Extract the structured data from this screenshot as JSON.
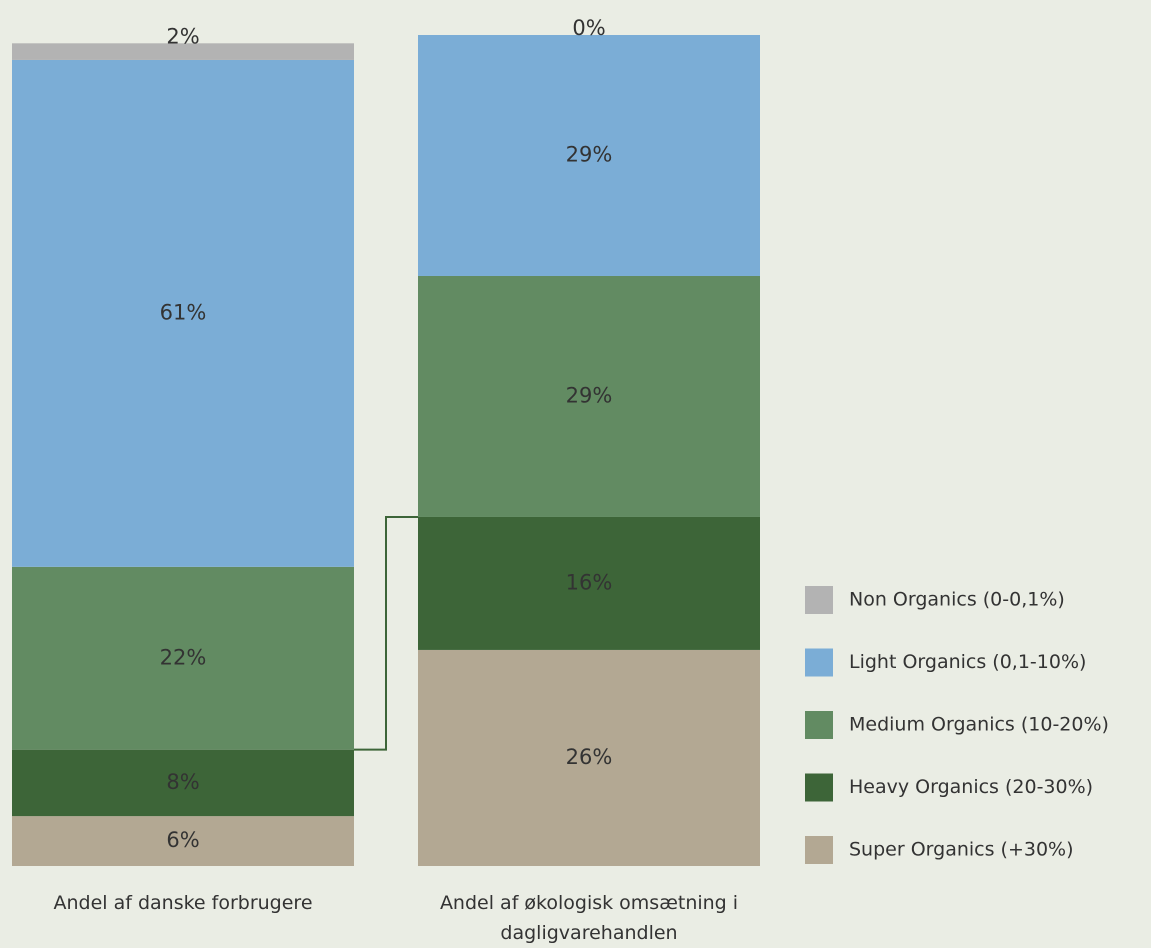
{
  "chart_data": {
    "type": "stacked_bar",
    "categories": [
      "Andel af danske forbrugere",
      "Andel af økologisk omsætning i dagligvarehandlen"
    ],
    "ylim": [
      0,
      100
    ],
    "series": [
      {
        "name": "Non Organics (0-0,1%)",
        "color": "#b3b3b3",
        "values": [
          2,
          0
        ],
        "value_labels": [
          "2%",
          "0%"
        ]
      },
      {
        "name": "Light Organics (0,1-10%)",
        "color": "#7badd6",
        "values": [
          61,
          29
        ],
        "value_labels": [
          "61%",
          "29%"
        ]
      },
      {
        "name": "Medium Organics (10-20%)",
        "color": "#628b62",
        "values": [
          22,
          29
        ],
        "value_labels": [
          "22%",
          "29%"
        ]
      },
      {
        "name": "Heavy Organics (20-30%)",
        "color": "#3d6538",
        "values": [
          8,
          16
        ],
        "value_labels": [
          "8%",
          "16%"
        ]
      },
      {
        "name": "Super Organics (+30%)",
        "color": "#b3a893",
        "values": [
          6,
          26
        ],
        "value_labels": [
          "6%",
          "26%"
        ]
      }
    ]
  }
}
